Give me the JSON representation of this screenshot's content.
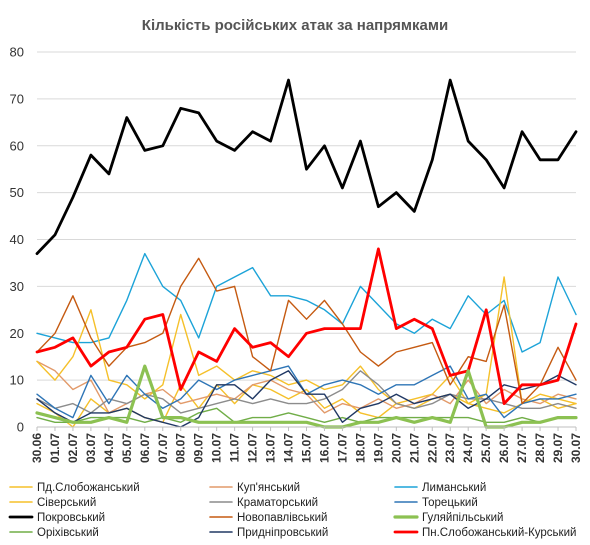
{
  "chart_data": {
    "type": "line",
    "title": "Кількість російських атак за напрямками",
    "xlabel": "",
    "ylabel": "",
    "ylim": [
      0,
      80
    ],
    "yticks": [
      0,
      10,
      20,
      30,
      40,
      50,
      60,
      70,
      80
    ],
    "grid": true,
    "legend_position": "bottom",
    "x": [
      "30.06",
      "01.07",
      "02.07",
      "03.07",
      "04.07",
      "05.07",
      "06.07",
      "07.07",
      "08.07",
      "09.07",
      "10.07",
      "11.07",
      "12.07",
      "13.07",
      "14.07",
      "15.07",
      "16.07",
      "17.07",
      "18.07",
      "19.07",
      "20.07",
      "21.07",
      "22.07",
      "23.07",
      "24.07",
      "25.07",
      "26.07",
      "27.07",
      "28.07",
      "29.07",
      "30.07"
    ],
    "x_tick_labels": [
      "30.06",
      "01.07",
      "02.07",
      "03.07",
      "04.07",
      "05.07",
      "06.07",
      "07.07",
      "08.07",
      "09.07",
      "10.07",
      "11.07",
      "12.07",
      "13.07",
      "14.07",
      "15.07",
      "16.07",
      "17.07",
      "18.07",
      "19.07",
      "20.07",
      "21.07",
      "22.07",
      "23.07",
      "24.07",
      "25.07",
      "26.07",
      "27.07",
      "28.07",
      "29.07",
      "30.07"
    ],
    "series": [
      {
        "name": "Пд.Слобожанський",
        "color": "#F5C02A",
        "width": 1.4,
        "values": [
          5,
          3,
          0,
          6,
          3,
          4,
          2,
          1,
          9,
          4,
          9,
          5,
          9,
          8,
          6,
          8,
          4,
          6,
          3,
          2,
          5,
          4,
          6,
          7,
          5,
          4,
          3,
          5,
          6,
          4,
          5
        ]
      },
      {
        "name": "Куп'янський",
        "color": "#E29A6A",
        "width": 1.4,
        "values": [
          14,
          12,
          8,
          10,
          3,
          5,
          7,
          8,
          5,
          6,
          7,
          6,
          9,
          10,
          8,
          7,
          3,
          5,
          4,
          6,
          4,
          5,
          7,
          5,
          10,
          5,
          8,
          6,
          5,
          7,
          6
        ]
      },
      {
        "name": "Лиманський",
        "color": "#1CA3D8",
        "width": 1.4,
        "values": [
          20,
          19,
          18,
          18,
          19,
          27,
          37,
          30,
          27,
          19,
          30,
          32,
          34,
          28,
          28,
          27,
          25,
          22,
          30,
          26,
          22,
          20,
          23,
          21,
          28,
          24,
          27,
          16,
          18,
          32,
          24
        ]
      },
      {
        "name": "Сіверський",
        "color": "#F5C02A",
        "width": 1.4,
        "values": [
          14,
          10,
          15,
          25,
          10,
          9,
          6,
          9,
          24,
          11,
          13,
          10,
          12,
          11,
          9,
          10,
          8,
          9,
          13,
          8,
          5,
          6,
          7,
          11,
          5,
          7,
          32,
          5,
          7,
          6,
          5
        ]
      },
      {
        "name": "Краматорський",
        "color": "#8C8C8C",
        "width": 1.4,
        "values": [
          6,
          4,
          5,
          3,
          6,
          5,
          7,
          6,
          3,
          4,
          5,
          6,
          5,
          6,
          5,
          5,
          6,
          8,
          12,
          9,
          5,
          4,
          5,
          7,
          6,
          6,
          5,
          4,
          4,
          5,
          4
        ]
      },
      {
        "name": "Торецький",
        "color": "#2E75B6",
        "width": 1.4,
        "values": [
          7,
          4,
          2,
          11,
          5,
          11,
          7,
          4,
          6,
          10,
          8,
          10,
          11,
          12,
          13,
          7,
          9,
          10,
          9,
          7,
          9,
          9,
          11,
          13,
          6,
          7,
          2,
          5,
          6,
          6,
          7
        ]
      },
      {
        "name": "Покровський",
        "color": "#000000",
        "width": 2.8,
        "values": [
          37,
          41,
          49,
          58,
          54,
          66,
          59,
          60,
          68,
          67,
          61,
          59,
          63,
          61,
          74,
          55,
          60,
          51,
          61,
          47,
          50,
          46,
          57,
          74,
          61,
          57,
          51,
          63,
          57,
          57,
          63
        ]
      },
      {
        "name": "Новопавлівський",
        "color": "#C55A11",
        "width": 1.4,
        "values": [
          16,
          20,
          28,
          19,
          13,
          17,
          18,
          20,
          30,
          36,
          29,
          30,
          15,
          12,
          27,
          23,
          27,
          22,
          16,
          13,
          16,
          17,
          18,
          9,
          15,
          14,
          26,
          5,
          9,
          17,
          10
        ]
      },
      {
        "name": "Гуляйпільський",
        "color": "#8CC152",
        "width": 3.2,
        "values": [
          3,
          2,
          1,
          1,
          2,
          1,
          13,
          2,
          2,
          1,
          1,
          1,
          1,
          1,
          1,
          1,
          0,
          0,
          1,
          1,
          2,
          1,
          2,
          1,
          12,
          0,
          0,
          1,
          1,
          2,
          2
        ]
      },
      {
        "name": "Оріхівський",
        "color": "#70AD47",
        "width": 1.4,
        "values": [
          2,
          1,
          1,
          2,
          2,
          2,
          1,
          2,
          1,
          3,
          4,
          1,
          2,
          2,
          3,
          2,
          1,
          2,
          1,
          2,
          2,
          2,
          2,
          2,
          2,
          1,
          1,
          2,
          1,
          2,
          2
        ]
      },
      {
        "name": "Придніпровський",
        "color": "#203864",
        "width": 1.4,
        "values": [
          6,
          3,
          1,
          3,
          3,
          4,
          2,
          1,
          0,
          2,
          9,
          9,
          6,
          10,
          12,
          7,
          7,
          1,
          4,
          5,
          7,
          5,
          6,
          7,
          4,
          6,
          9,
          8,
          9,
          11,
          9
        ]
      },
      {
        "name": "Пн.Слобожанський-Курський",
        "color": "#FF0000",
        "width": 2.8,
        "values": [
          16,
          17,
          19,
          13,
          16,
          17,
          23,
          24,
          8,
          16,
          14,
          21,
          17,
          18,
          15,
          20,
          21,
          21,
          21,
          38,
          21,
          23,
          21,
          11,
          12,
          25,
          5,
          9,
          9,
          10,
          22
        ]
      }
    ]
  }
}
